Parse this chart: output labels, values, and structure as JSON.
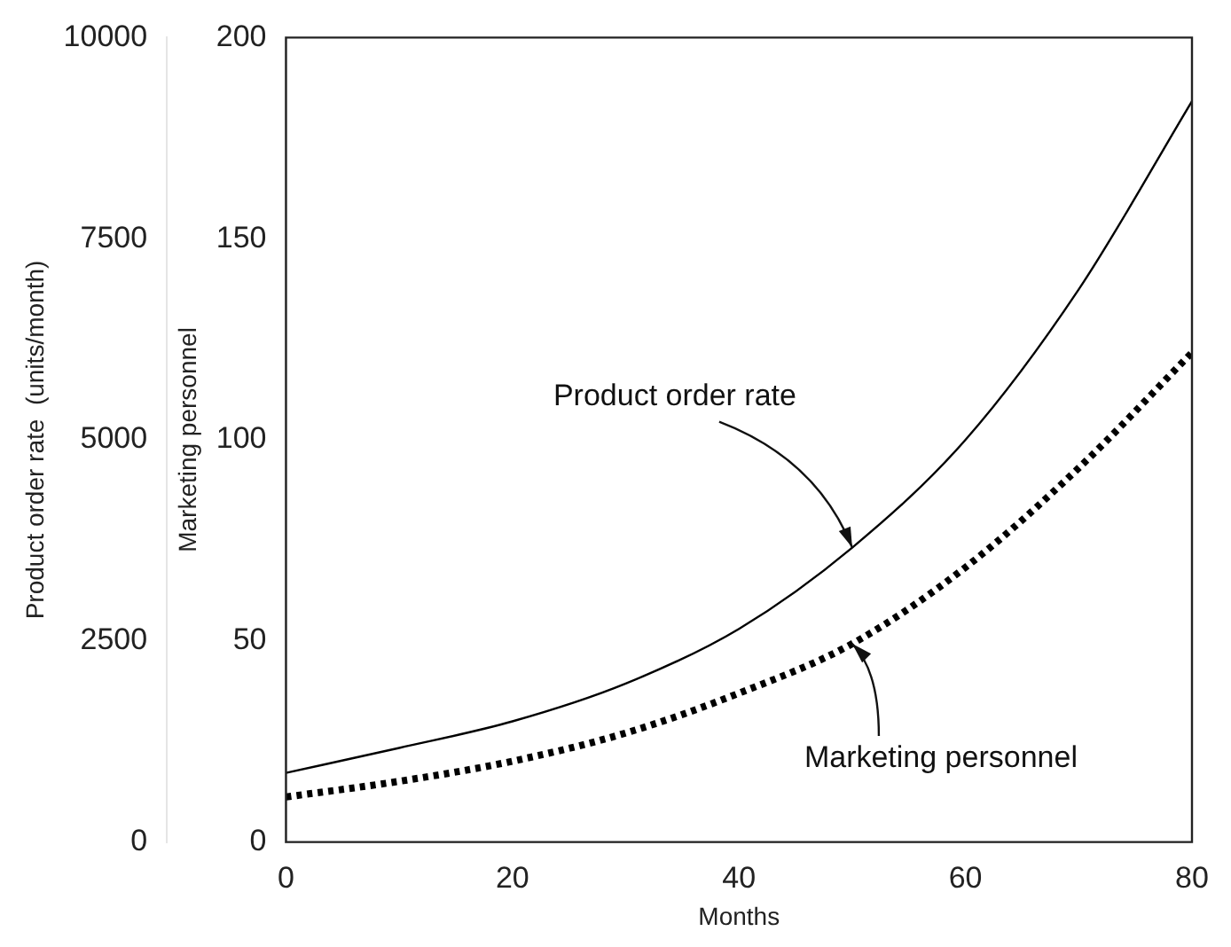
{
  "chart_data": {
    "type": "line",
    "xlabel": "Months",
    "ylabel": "Product order rate  (units/month)",
    "y2label": "Marketing personnel",
    "x": [
      0,
      10,
      20,
      30,
      40,
      50,
      60,
      70,
      80
    ],
    "series": [
      {
        "color": "#000000",
        "values": [
          860,
          1170,
          1500,
          1970,
          2650,
          3660,
          5000,
          6870,
          9210
        ],
        "line_style": "solid"
      },
      {
        "color": "#000000",
        "values": [
          11.2,
          15.1,
          20.1,
          27.1,
          37,
          49.3,
          68.3,
          93,
          121.7
        ],
        "axis": "y2",
        "line_style": "dotted"
      }
    ],
    "xlim": [
      0,
      80
    ],
    "xticks": [
      0,
      20,
      40,
      60,
      80
    ],
    "ylim": [
      0,
      10000
    ],
    "yticks": [
      0,
      2500,
      5000,
      7500,
      10000
    ],
    "y2lim": [
      0,
      200
    ],
    "y2ticks": [
      0,
      50,
      100,
      150,
      200
    ],
    "annotations": [
      {
        "text": "Product order rate",
        "x": 50,
        "y": 3660
      },
      {
        "text": "Marketing personnel",
        "x": 50,
        "y": 2465
      }
    ],
    "grid": false,
    "legend": false,
    "marker": "none"
  }
}
